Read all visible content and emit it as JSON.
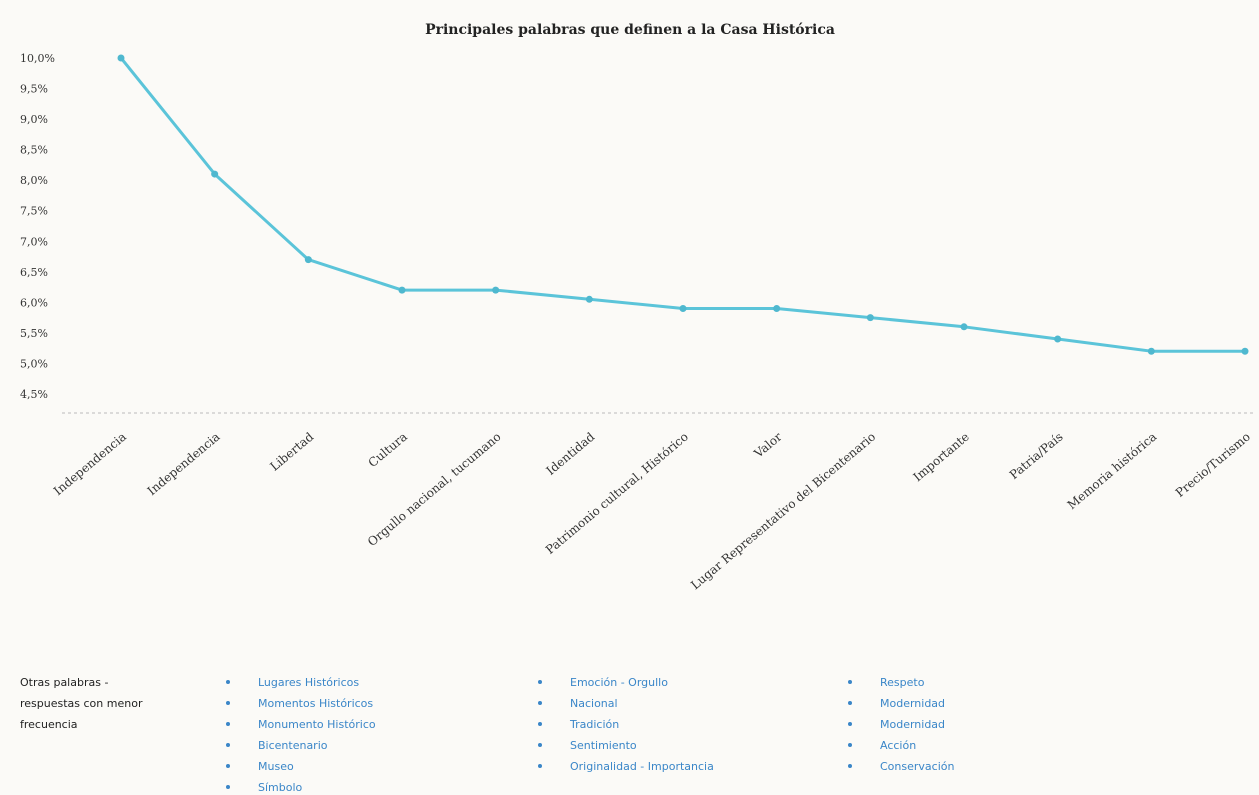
{
  "chart_data": {
    "type": "line",
    "title": "Principales palabras que definen a la Casa Histórica",
    "xlabel": "",
    "ylabel": "",
    "categories": [
      "Independencia",
      "Independencia",
      "Libertad",
      "Cultura",
      "Orgullo nacional, tucumano",
      "Identidad",
      "Patrimonio cultural, Histórico",
      "Valor",
      "Lugar Representativo del Bicentenario",
      "Importante",
      "Patria/País",
      "Memoria histórica",
      "Precio/Turismo"
    ],
    "values": [
      10.0,
      8.1,
      6.7,
      6.2,
      6.2,
      6.05,
      5.9,
      5.9,
      5.75,
      5.6,
      5.4,
      5.2,
      5.2
    ],
    "yticks": [
      "10,0%",
      "9,5%",
      "9,0%",
      "8,5%",
      "8,0%",
      "7,5%",
      "7,0%",
      "6,5%",
      "6,0%",
      "5,5%",
      "5,0%",
      "4,5%"
    ],
    "ylim": [
      4.5,
      10.5
    ],
    "grid": false,
    "line_color": "#5bc4d9",
    "legend": {
      "title": "Otras palabras - respuestas con menor frecuencia",
      "columns": [
        [
          "Lugares Históricos",
          "Momentos Históricos",
          "Monumento Histórico",
          "Bicentenario",
          "Museo",
          "Símbolo"
        ],
        [
          "Emoción - Orgullo",
          "Nacional",
          "Tradición",
          "Sentimiento",
          "Originalidad - Importancia"
        ],
        [
          "Respeto",
          "Modernidad",
          "Modernidad",
          "Acción",
          "Conservación"
        ]
      ]
    }
  }
}
